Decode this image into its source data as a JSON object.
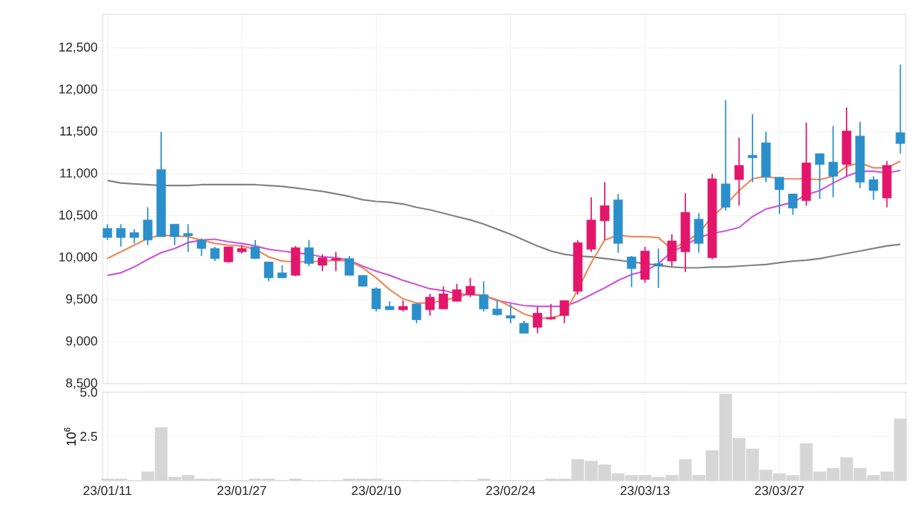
{
  "chart_data": [
    {
      "type": "candlestick",
      "categories": [
        null,
        null,
        null,
        null,
        null,
        null,
        null,
        null,
        null,
        null,
        null,
        null,
        null,
        null,
        null,
        null,
        null,
        null,
        null,
        null,
        null,
        null,
        null,
        null,
        null,
        null,
        null,
        null,
        null,
        null,
        null,
        null,
        null,
        null,
        null,
        null,
        null,
        null,
        null,
        null,
        null,
        null,
        null,
        null,
        null,
        null,
        null,
        null,
        null,
        null,
        null,
        null,
        null,
        null,
        null,
        null,
        null,
        null,
        null,
        null
      ],
      "ohlc": [
        [
          10350,
          10400,
          10210,
          10240
        ],
        [
          10350,
          10400,
          10130,
          10240
        ],
        [
          10300,
          10340,
          10170,
          10240
        ],
        [
          10450,
          10600,
          10150,
          10210
        ],
        [
          11050,
          11500,
          10250,
          10250
        ],
        [
          10400,
          10400,
          10150,
          10250
        ],
        [
          10290,
          10400,
          10070,
          10260
        ],
        [
          10210,
          10230,
          10020,
          10110
        ],
        [
          10110,
          10130,
          9960,
          9990
        ],
        [
          9950,
          10130,
          9940,
          10130
        ],
        [
          10070,
          10150,
          10050,
          10110
        ],
        [
          10130,
          10210,
          9990,
          9990
        ],
        [
          9950,
          9950,
          9720,
          9760
        ],
        [
          9820,
          9910,
          9760,
          9760
        ],
        [
          9790,
          10140,
          9780,
          10120
        ],
        [
          10120,
          10210,
          9900,
          9930
        ],
        [
          9910,
          10040,
          9840,
          10000
        ],
        [
          9970,
          10070,
          9840,
          9990
        ],
        [
          9990,
          10020,
          9790,
          9790
        ],
        [
          9790,
          9790,
          9660,
          9660
        ],
        [
          9630,
          9650,
          9360,
          9390
        ],
        [
          9420,
          9480,
          9380,
          9380
        ],
        [
          9380,
          9490,
          9360,
          9420
        ],
        [
          9450,
          9460,
          9220,
          9260
        ],
        [
          9380,
          9570,
          9310,
          9530
        ],
        [
          9390,
          9660,
          9390,
          9570
        ],
        [
          9480,
          9690,
          9480,
          9620
        ],
        [
          9560,
          9760,
          9530,
          9660
        ],
        [
          9560,
          9720,
          9360,
          9390
        ],
        [
          9390,
          9490,
          9310,
          9320
        ],
        [
          9310,
          9450,
          9220,
          9280
        ],
        [
          9220,
          9250,
          9100,
          9100
        ],
        [
          9170,
          9420,
          9100,
          9340
        ],
        [
          9270,
          9450,
          9260,
          9290
        ],
        [
          9310,
          9490,
          9220,
          9490
        ],
        [
          9600,
          10210,
          9560,
          10180
        ],
        [
          10100,
          10720,
          10070,
          10450
        ],
        [
          10440,
          10900,
          10210,
          10620
        ],
        [
          10690,
          10760,
          10060,
          10170
        ],
        [
          10010,
          10020,
          9650,
          9870
        ],
        [
          9740,
          10130,
          9700,
          10080
        ],
        [
          9930,
          10110,
          9640,
          9900
        ],
        [
          9960,
          10280,
          9900,
          10200
        ],
        [
          10070,
          10770,
          9830,
          10540
        ],
        [
          10460,
          10530,
          10060,
          10170
        ],
        [
          10000,
          11000,
          9980,
          10940
        ],
        [
          10880,
          11880,
          10560,
          10600
        ],
        [
          10930,
          11430,
          10620,
          11100
        ],
        [
          11220,
          11710,
          10900,
          11190
        ],
        [
          11370,
          11500,
          10900,
          10960
        ],
        [
          10960,
          10960,
          10520,
          10810
        ],
        [
          10760,
          10760,
          10510,
          10590
        ],
        [
          10680,
          11610,
          10620,
          11130
        ],
        [
          11240,
          11240,
          10700,
          11110
        ],
        [
          11140,
          11570,
          10720,
          10970
        ],
        [
          11110,
          11790,
          10970,
          11510
        ],
        [
          11450,
          11620,
          10830,
          10900
        ],
        [
          10930,
          10970,
          10690,
          10800
        ],
        [
          10710,
          11150,
          10600,
          11100
        ],
        [
          11490,
          12300,
          11240,
          11360
        ]
      ],
      "colors": [
        "#2b8fcb",
        "#2b8fcb",
        "#2b8fcb",
        "#2b8fcb",
        "#2b8fcb",
        "#2b8fcb",
        "#2b8fcb",
        "#2b8fcb",
        "#2b8fcb",
        "#e3166b",
        "#e3166b",
        "#2b8fcb",
        "#2b8fcb",
        "#2b8fcb",
        "#e3166b",
        "#2b8fcb",
        "#e3166b",
        "#e3166b",
        "#2b8fcb",
        "#2b8fcb",
        "#2b8fcb",
        "#2b8fcb",
        "#e3166b",
        "#2b8fcb",
        "#e3166b",
        "#e3166b",
        "#e3166b",
        "#e3166b",
        "#2b8fcb",
        "#2b8fcb",
        "#2b8fcb",
        "#2b8fcb",
        "#e3166b",
        "#e3166b",
        "#e3166b",
        "#e3166b",
        "#e3166b",
        "#e3166b",
        "#2b8fcb",
        "#2b8fcb",
        "#e3166b",
        "#2b8fcb",
        "#e3166b",
        "#e3166b",
        "#2b8fcb",
        "#e3166b",
        "#2b8fcb",
        "#e3166b",
        "#2b8fcb",
        "#2b8fcb",
        "#2b8fcb",
        "#2b8fcb",
        "#e3166b",
        "#2b8fcb",
        "#2b8fcb",
        "#e3166b",
        "#2b8fcb",
        "#2b8fcb",
        "#e3166b",
        "#2b8fcb"
      ],
      "series": [
        {
          "type": "line",
          "color": "#808080",
          "values": [
            10920,
            10890,
            10880,
            10870,
            10860,
            10860,
            10860,
            10870,
            10870,
            10870,
            10870,
            10870,
            10860,
            10850,
            10830,
            10810,
            10790,
            10760,
            10730,
            10690,
            10670,
            10660,
            10640,
            10600,
            10570,
            10530,
            10490,
            10450,
            10400,
            10340,
            10280,
            10210,
            10140,
            10080,
            10040,
            10020,
            10010,
            9990,
            9970,
            9950,
            9930,
            9910,
            9890,
            9880,
            9880,
            9890,
            9890,
            9900,
            9910,
            9920,
            9940,
            9960,
            9970,
            9990,
            10020,
            10050,
            10080,
            10110,
            10140,
            10160
          ]
        },
        {
          "type": "line",
          "color": "#cc55dd",
          "values": [
            9790,
            9820,
            9890,
            9980,
            10060,
            10110,
            10180,
            10210,
            10220,
            10190,
            10170,
            10140,
            10100,
            10080,
            10060,
            10040,
            10010,
            10000,
            9970,
            9900,
            9840,
            9790,
            9730,
            9680,
            9630,
            9610,
            9570,
            9560,
            9550,
            9490,
            9460,
            9430,
            9420,
            9420,
            9420,
            9480,
            9560,
            9640,
            9730,
            9800,
            9840,
            9930,
            10070,
            10150,
            10240,
            10290,
            10320,
            10360,
            10490,
            10580,
            10620,
            10660,
            10750,
            10800,
            10890,
            10970,
            11030,
            11030,
            11010,
            11040
          ]
        },
        {
          "type": "line",
          "color": "#ee8855",
          "values": [
            9990,
            10070,
            10150,
            10230,
            10270,
            10260,
            10250,
            10210,
            10170,
            10150,
            10140,
            10100,
            10010,
            9960,
            9950,
            9950,
            9960,
            9970,
            9960,
            9880,
            9760,
            9620,
            9510,
            9460,
            9460,
            9490,
            9530,
            9570,
            9550,
            9500,
            9420,
            9330,
            9280,
            9280,
            9330,
            9620,
            9940,
            10210,
            10270,
            10250,
            10250,
            10240,
            10100,
            10190,
            10290,
            10490,
            10630,
            10800,
            10940,
            10970,
            10940,
            10940,
            10940,
            10930,
            10970,
            11090,
            11130,
            11070,
            11070,
            11150
          ]
        }
      ],
      "ylim": [
        8500,
        12900
      ],
      "yticks": [
        {
          "value": 8500,
          "label": "8,500"
        },
        {
          "value": 9000,
          "label": "9,000"
        },
        {
          "value": 9500,
          "label": "9,500"
        },
        {
          "value": 10000,
          "label": "10,000"
        },
        {
          "value": 10500,
          "label": "10,500"
        },
        {
          "value": 11000,
          "label": "11,000"
        },
        {
          "value": 11500,
          "label": "11,500"
        },
        {
          "value": 12000,
          "label": "12,000"
        },
        {
          "value": 12500,
          "label": "12,500"
        }
      ],
      "grid": true
    },
    {
      "type": "bar",
      "categories": [
        "23/01/11",
        null,
        null,
        null,
        null,
        null,
        null,
        null,
        null,
        null,
        "23/01/27",
        null,
        null,
        null,
        null,
        null,
        null,
        null,
        null,
        null,
        "23/02/10",
        null,
        null,
        null,
        null,
        null,
        null,
        null,
        null,
        null,
        "23/02/24",
        null,
        null,
        null,
        null,
        null,
        null,
        null,
        null,
        null,
        "23/03/13",
        null,
        null,
        null,
        null,
        null,
        null,
        null,
        null,
        null,
        "23/03/27",
        null,
        null,
        null,
        null,
        null,
        null,
        null,
        null,
        null
      ],
      "values": [
        0.1,
        0.1,
        0,
        0.5,
        3.0,
        0.2,
        0.3,
        0.1,
        0.1,
        0,
        0,
        0.1,
        0.1,
        0,
        0.1,
        0,
        0,
        0,
        0.1,
        0.1,
        0.1,
        0,
        0,
        0,
        0,
        0,
        0,
        0,
        0.1,
        0,
        0,
        0,
        0,
        0.1,
        0.1,
        1.2,
        1.1,
        0.9,
        0.4,
        0.3,
        0.3,
        0.2,
        0.3,
        1.2,
        0.3,
        1.7,
        4.9,
        2.4,
        1.8,
        0.6,
        0.4,
        0.3,
        2.1,
        0.5,
        0.7,
        1.3,
        0.7,
        0.3,
        0.5,
        3.5
      ],
      "color": "#d6d6d6",
      "ylabel": "10$^{6}$",
      "ylim": [
        0,
        5
      ],
      "yticks": [
        2.5,
        {
          "value": 5,
          "label": "5.0"
        }
      ],
      "grid": true
    }
  ]
}
